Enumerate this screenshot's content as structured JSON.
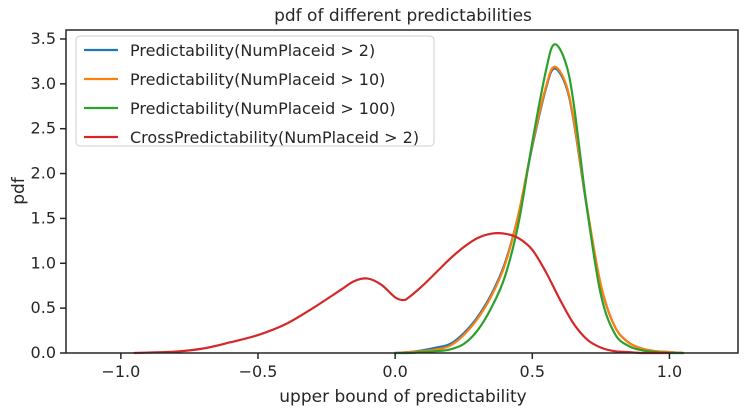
{
  "chart_data": {
    "type": "line",
    "title": "pdf of different predictabilities",
    "xlabel": "upper bound of predictability",
    "ylabel": "pdf",
    "xlim": [
      -1.2,
      1.25
    ],
    "ylim": [
      0,
      3.6
    ],
    "xticks": [
      "−1.0",
      "−0.5",
      "0.0",
      "0.5",
      "1.0"
    ],
    "xtick_values": [
      -1.0,
      -0.5,
      0.0,
      0.5,
      1.0
    ],
    "yticks": [
      "0.0",
      "0.5",
      "1.0",
      "1.5",
      "2.0",
      "2.5",
      "3.0",
      "3.5"
    ],
    "ytick_values": [
      0,
      0.5,
      1.0,
      1.5,
      2.0,
      2.5,
      3.0,
      3.5
    ],
    "grid": false,
    "legend_position": "top-left",
    "series": [
      {
        "name": "Predictability(NumPlaceid > 2)",
        "color": "#1f77b4",
        "x": [
          0.0,
          0.05,
          0.1,
          0.15,
          0.2,
          0.25,
          0.3,
          0.35,
          0.4,
          0.45,
          0.5,
          0.55,
          0.58,
          0.62,
          0.65,
          0.7,
          0.75,
          0.8,
          0.85,
          0.9,
          0.95,
          1.0,
          1.05
        ],
        "y": [
          0.0,
          0.01,
          0.03,
          0.06,
          0.1,
          0.22,
          0.4,
          0.65,
          1.0,
          1.55,
          2.3,
          2.95,
          3.17,
          3.0,
          2.6,
          1.6,
          0.75,
          0.3,
          0.12,
          0.05,
          0.02,
          0.01,
          0.0
        ]
      },
      {
        "name": "Predictability(NumPlaceid > 10)",
        "color": "#ff7f0e",
        "x": [
          0.0,
          0.05,
          0.1,
          0.15,
          0.2,
          0.25,
          0.3,
          0.35,
          0.4,
          0.45,
          0.5,
          0.55,
          0.58,
          0.62,
          0.65,
          0.7,
          0.75,
          0.8,
          0.85,
          0.9,
          0.95,
          1.0,
          1.05
        ],
        "y": [
          0.0,
          0.01,
          0.02,
          0.04,
          0.08,
          0.2,
          0.38,
          0.63,
          0.98,
          1.55,
          2.32,
          2.97,
          3.19,
          3.02,
          2.62,
          1.62,
          0.76,
          0.3,
          0.12,
          0.05,
          0.02,
          0.01,
          0.0
        ]
      },
      {
        "name": "Predictability(NumPlaceid > 100)",
        "color": "#2ca02c",
        "x": [
          0.0,
          0.05,
          0.1,
          0.15,
          0.2,
          0.25,
          0.3,
          0.35,
          0.4,
          0.45,
          0.5,
          0.55,
          0.58,
          0.62,
          0.65,
          0.7,
          0.75,
          0.8,
          0.85,
          0.9,
          0.95,
          1.0,
          1.05
        ],
        "y": [
          0.0,
          0.0,
          0.01,
          0.02,
          0.04,
          0.1,
          0.25,
          0.5,
          0.85,
          1.45,
          2.35,
          3.15,
          3.44,
          3.25,
          2.8,
          1.6,
          0.65,
          0.22,
          0.08,
          0.03,
          0.01,
          0.0,
          0.0
        ]
      },
      {
        "name": "CrossPredictability(NumPlaceid > 2)",
        "color": "#d62728",
        "x": [
          -0.95,
          -0.9,
          -0.8,
          -0.7,
          -0.6,
          -0.5,
          -0.4,
          -0.3,
          -0.2,
          -0.15,
          -0.1,
          -0.05,
          0.0,
          0.03,
          0.05,
          0.1,
          0.15,
          0.2,
          0.25,
          0.3,
          0.35,
          0.4,
          0.45,
          0.5,
          0.55,
          0.6,
          0.65,
          0.7,
          0.75,
          0.8,
          0.85,
          0.9,
          0.95,
          1.0
        ],
        "y": [
          0.0,
          0.005,
          0.015,
          0.05,
          0.12,
          0.2,
          0.32,
          0.5,
          0.7,
          0.8,
          0.83,
          0.76,
          0.62,
          0.59,
          0.62,
          0.75,
          0.9,
          1.05,
          1.18,
          1.28,
          1.33,
          1.33,
          1.28,
          1.15,
          0.9,
          0.6,
          0.33,
          0.15,
          0.06,
          0.02,
          0.01,
          0.0,
          0.0,
          0.0
        ]
      }
    ]
  }
}
